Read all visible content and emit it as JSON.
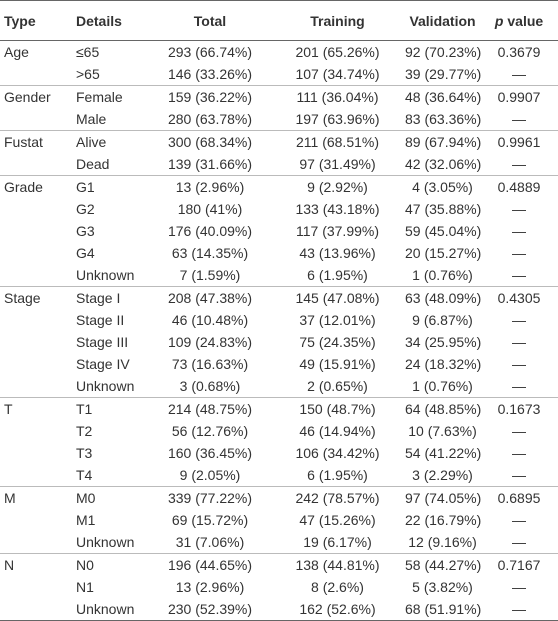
{
  "table": {
    "columns": [
      "Type",
      "Details",
      "Total",
      "Training",
      "Validation",
      {
        "symbol": "p",
        "text": "value"
      }
    ],
    "groups": [
      {
        "type": "Age",
        "rows": [
          [
            "≤65",
            "293 (66.74%)",
            "201 (65.26%)",
            "92 (70.23%)",
            "0.3679"
          ],
          [
            ">65",
            "146 (33.26%)",
            "107 (34.74%)",
            "39 (29.77%)",
            "—"
          ]
        ]
      },
      {
        "type": "Gender",
        "rows": [
          [
            "Female",
            "159 (36.22%)",
            "111 (36.04%)",
            "48 (36.64%)",
            "0.9907"
          ],
          [
            "Male",
            "280 (63.78%)",
            "197 (63.96%)",
            "83 (63.36%)",
            "—"
          ]
        ]
      },
      {
        "type": "Fustat",
        "rows": [
          [
            "Alive",
            "300 (68.34%)",
            "211 (68.51%)",
            "89 (67.94%)",
            "0.9961"
          ],
          [
            "Dead",
            "139 (31.66%)",
            "97 (31.49%)",
            "42 (32.06%)",
            "—"
          ]
        ]
      },
      {
        "type": "Grade",
        "rows": [
          [
            "G1",
            "13 (2.96%)",
            "9 (2.92%)",
            "4 (3.05%)",
            "0.4889"
          ],
          [
            "G2",
            "180 (41%)",
            "133 (43.18%)",
            "47 (35.88%)",
            "—"
          ],
          [
            "G3",
            "176 (40.09%)",
            "117 (37.99%)",
            "59 (45.04%)",
            "—"
          ],
          [
            "G4",
            "63 (14.35%)",
            "43 (13.96%)",
            "20 (15.27%)",
            "—"
          ],
          [
            "Unknown",
            "7 (1.59%)",
            "6 (1.95%)",
            "1 (0.76%)",
            "—"
          ]
        ]
      },
      {
        "type": "Stage",
        "rows": [
          [
            "Stage I",
            "208 (47.38%)",
            "145 (47.08%)",
            "63 (48.09%)",
            "0.4305"
          ],
          [
            "Stage II",
            "46 (10.48%)",
            "37 (12.01%)",
            "9 (6.87%)",
            "—"
          ],
          [
            "Stage III",
            "109 (24.83%)",
            "75 (24.35%)",
            "34 (25.95%)",
            "—"
          ],
          [
            "Stage IV",
            "73 (16.63%)",
            "49 (15.91%)",
            "24 (18.32%)",
            "—"
          ],
          [
            "Unknown",
            "3 (0.68%)",
            "2 (0.65%)",
            "1 (0.76%)",
            "—"
          ]
        ]
      },
      {
        "type": "T",
        "rows": [
          [
            "T1",
            "214 (48.75%)",
            "150 (48.7%)",
            "64 (48.85%)",
            "0.1673"
          ],
          [
            "T2",
            "56 (12.76%)",
            "46 (14.94%)",
            "10 (7.63%)",
            "—"
          ],
          [
            "T3",
            "160 (36.45%)",
            "106 (34.42%)",
            "54 (41.22%)",
            "—"
          ],
          [
            "T4",
            "9 (2.05%)",
            "6 (1.95%)",
            "3 (2.29%)",
            "—"
          ]
        ]
      },
      {
        "type": "M",
        "rows": [
          [
            "M0",
            "339 (77.22%)",
            "242 (78.57%)",
            "97 (74.05%)",
            "0.6895"
          ],
          [
            "M1",
            "69 (15.72%)",
            "47 (15.26%)",
            "22 (16.79%)",
            "—"
          ],
          [
            "Unknown",
            "31 (7.06%)",
            "19 (6.17%)",
            "12 (9.16%)",
            "—"
          ]
        ]
      },
      {
        "type": "N",
        "rows": [
          [
            "N0",
            "196 (44.65%)",
            "138 (44.81%)",
            "58 (44.27%)",
            "0.7167"
          ],
          [
            "N1",
            "13 (2.96%)",
            "8 (2.6%)",
            "5 (3.82%)",
            "—"
          ],
          [
            "Unknown",
            "230 (52.39%)",
            "162 (52.6%)",
            "68 (51.91%)",
            "—"
          ]
        ]
      }
    ]
  }
}
